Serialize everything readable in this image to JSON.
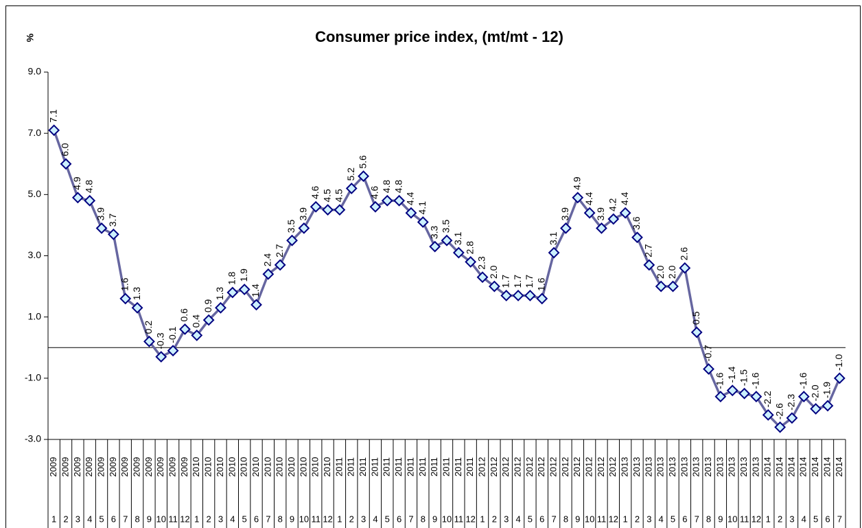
{
  "chart_data": {
    "type": "line",
    "title": "Consumer price index, (mt/mt - 12)",
    "ylabel": "%",
    "categories": [
      "1",
      "2",
      "3",
      "4",
      "5",
      "6",
      "7",
      "8",
      "9",
      "10",
      "11",
      "12",
      "1",
      "2",
      "3",
      "4",
      "5",
      "6",
      "7",
      "8",
      "9",
      "10",
      "11",
      "12",
      "1",
      "2",
      "3",
      "4",
      "5",
      "6",
      "7",
      "8",
      "9",
      "10",
      "11",
      "12",
      "1",
      "2",
      "3",
      "4",
      "5",
      "6",
      "7",
      "8",
      "9",
      "10",
      "11",
      "12",
      "1",
      "2",
      "3",
      "4",
      "5",
      "6",
      "7",
      "8",
      "9",
      "10",
      "11",
      "12",
      "1",
      "2",
      "3",
      "4",
      "5",
      "6",
      "7"
    ],
    "category_years": [
      "2009",
      "2009",
      "2009",
      "2009",
      "2009",
      "2009",
      "2009",
      "2009",
      "2009",
      "2009",
      "2009",
      "2009",
      "2010",
      "2010",
      "2010",
      "2010",
      "2010",
      "2010",
      "2010",
      "2010",
      "2010",
      "2010",
      "2010",
      "2010",
      "2011",
      "2011",
      "2011",
      "2011",
      "2011",
      "2011",
      "2011",
      "2011",
      "2011",
      "2011",
      "2011",
      "2011",
      "2012",
      "2012",
      "2012",
      "2012",
      "2012",
      "2012",
      "2012",
      "2012",
      "2012",
      "2012",
      "2012",
      "2012",
      "2013",
      "2013",
      "2013",
      "2013",
      "2013",
      "2013",
      "2013",
      "2013",
      "2013",
      "2013",
      "2013",
      "2013",
      "2014",
      "2014",
      "2014",
      "2014",
      "2014",
      "2014",
      "2014"
    ],
    "values": [
      7.1,
      6.0,
      4.9,
      4.8,
      3.9,
      3.7,
      1.6,
      1.3,
      0.2,
      -0.3,
      -0.1,
      0.6,
      0.4,
      0.9,
      1.3,
      1.8,
      1.9,
      1.4,
      2.4,
      2.7,
      3.5,
      3.9,
      4.6,
      4.5,
      4.5,
      5.2,
      5.6,
      4.6,
      4.8,
      4.8,
      4.4,
      4.1,
      3.3,
      3.5,
      3.1,
      2.8,
      2.3,
      2.0,
      1.7,
      1.7,
      1.7,
      1.6,
      3.1,
      3.9,
      4.9,
      4.4,
      3.9,
      4.2,
      4.4,
      3.6,
      2.7,
      2.0,
      2.0,
      2.6,
      0.5,
      -0.7,
      -1.6,
      -1.4,
      -1.5,
      -1.6,
      -2.2,
      -2.6,
      -2.3,
      -1.6,
      -2.0,
      -1.9,
      -1.0
    ],
    "value_labels": [
      "7.1",
      "6.0",
      "4.9",
      "4.8",
      "3.9",
      "3.7",
      "1.6",
      "1.3",
      "0.2",
      "-0.3",
      "-0.1",
      "0.6",
      "0.4",
      "0.9",
      "1.3",
      "1.8",
      "1.9",
      "1.4",
      "2.4",
      "2.7",
      "3.5",
      "3.9",
      "4.6",
      "4.5",
      "4.5",
      "5.2",
      "5.6",
      "4.6",
      "4.8",
      "4.8",
      "4.4",
      "4.1",
      "3.3",
      "3.5",
      "3.1",
      "2.8",
      "2.3",
      "2.0",
      "1.7",
      "1.7",
      "1.7",
      "1.6",
      "3.1",
      "3.9",
      "4.9",
      "4.4",
      "3.9",
      "4.2",
      "4.4",
      "3.6",
      "2.7",
      "2.0",
      "2.0",
      "2.6",
      "0.5",
      "-0.7",
      "-1.6",
      "-1.4",
      "-1.5",
      "-1.6",
      "-2.2",
      "-2.6",
      "-2.3",
      "-1.6",
      "-2.0",
      "-1.9",
      "-1.0"
    ],
    "color": "#6666a0",
    "marker_fill": "#ccf0ff",
    "marker_stroke": "#000080",
    "ylim": [
      -3,
      9
    ],
    "yticks": [
      {
        "value": -3,
        "label": "-3.0"
      },
      {
        "value": -1,
        "label": "-1.0"
      },
      {
        "value": 1,
        "label": "1.0"
      },
      {
        "value": 3,
        "label": "3.0"
      },
      {
        "value": 5,
        "label": "5.0"
      },
      {
        "value": 7,
        "label": "7.0"
      },
      {
        "value": 9,
        "label": "9.0"
      }
    ],
    "grid": false
  }
}
